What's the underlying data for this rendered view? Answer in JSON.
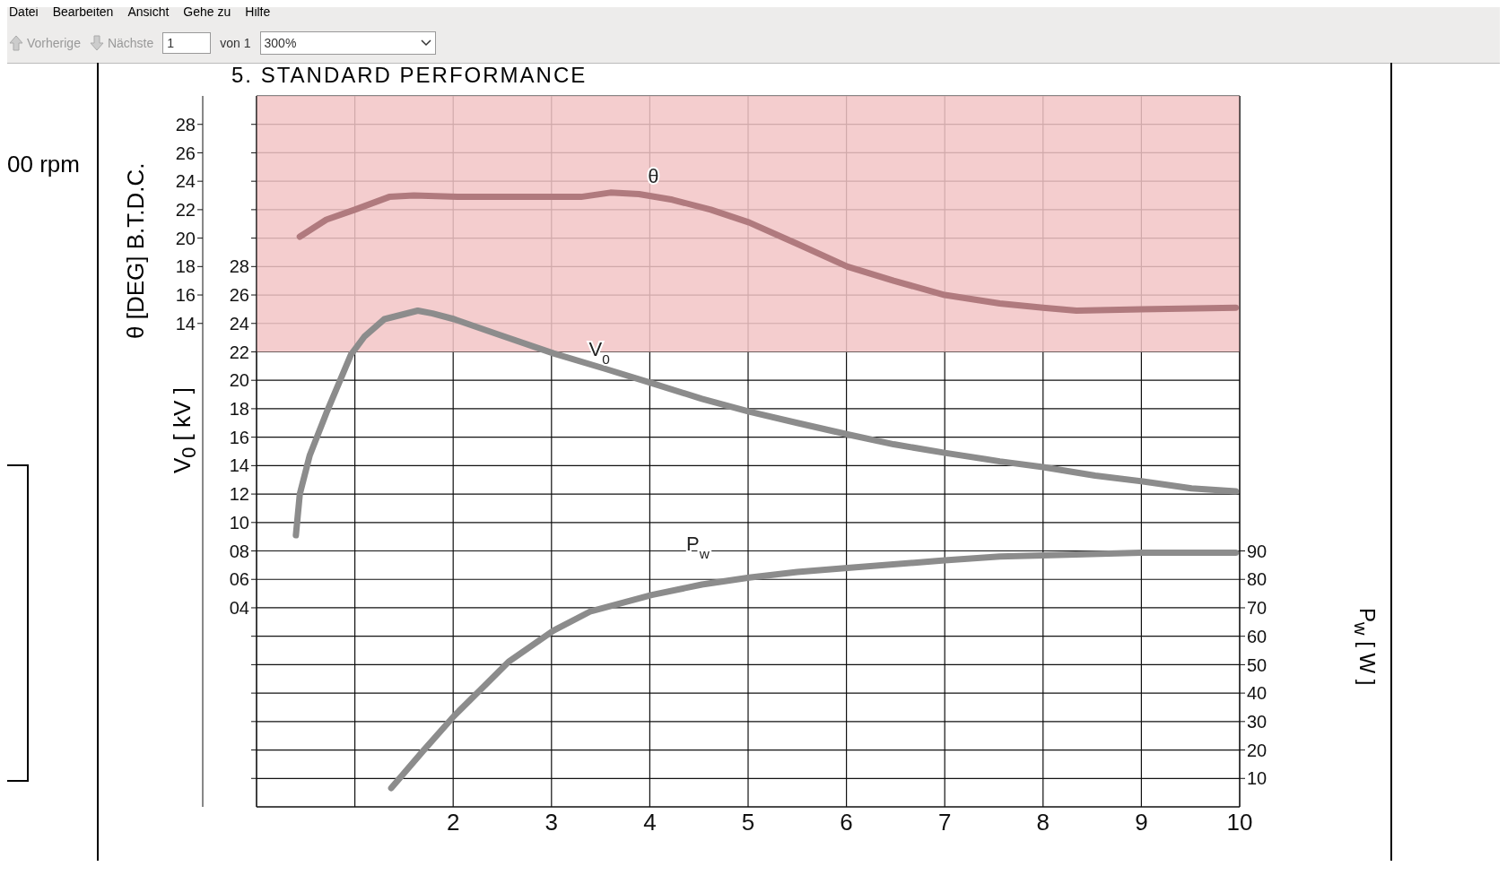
{
  "chart_data": {
    "type": "line",
    "title": "5. STANDARD PERFORMANCE",
    "ylabel": "V$_{0}$ [ kV ]",
    "y2label": "P$_{w}$ [ W ]",
    "y3label": "θ [DEG] B.T.D.C.",
    "xlim": [
      0,
      10
    ],
    "xticks": [
      {
        "value": 0,
        "label": null
      },
      {
        "value": 1,
        "label": null
      },
      2,
      3,
      4,
      5,
      6,
      7,
      8,
      9,
      10
    ],
    "ylim": [
      -10,
      40
    ],
    "yticks": [
      {
        "value": -8,
        "label": null
      },
      {
        "value": -6,
        "label": null
      },
      {
        "value": -4,
        "label": null
      },
      {
        "value": -2,
        "label": null
      },
      {
        "value": 0,
        "label": null
      },
      {
        "value": 2,
        "label": null
      },
      {
        "value": 4,
        "label": "04"
      },
      {
        "value": 6,
        "label": "06"
      },
      {
        "value": 8,
        "label": "08"
      },
      10,
      12,
      14,
      16,
      18,
      20,
      22,
      24,
      26,
      28,
      {
        "value": 30,
        "label": null
      },
      {
        "value": 32,
        "label": null
      },
      {
        "value": 34,
        "label": null
      },
      {
        "value": 36,
        "label": null
      },
      {
        "value": 38,
        "label": null
      }
    ],
    "y2lim": [
      0,
      250
    ],
    "y2ticks": [
      10,
      20,
      30,
      40,
      50,
      60,
      70,
      80,
      90
    ],
    "y3lim": [
      -20,
      30
    ],
    "y3ticks": [
      14,
      16,
      18,
      20,
      22,
      24,
      26,
      28
    ],
    "grid": true,
    "legend": false,
    "marker": "none",
    "line_style": "solid",
    "bands": [
      {
        "axis": "y",
        "from": 22,
        "to": 40,
        "color": "#f2c4c6"
      }
    ],
    "annotations": [
      "Datei",
      "Bearbeiten",
      "Ansicht",
      "Gehe zu",
      "Hilfe",
      "Vorherige",
      "Nächste",
      "1",
      "von 1",
      "300%",
      "00 rpm"
    ],
    "series": [
      {
        "name": "θ",
        "color": "#b07a7e",
        "axis": "y3",
        "x": [
          0.44,
          0.71,
          1.0,
          1.35,
          1.6,
          2.08,
          2.86,
          3.3,
          3.6,
          3.89,
          4.23,
          4.62,
          5.01,
          5.5,
          6.01,
          6.48,
          7.0,
          7.56,
          8.0,
          8.34,
          9.0,
          9.96
        ],
        "values": [
          20.1,
          21.3,
          22.0,
          22.9,
          23.0,
          22.9,
          22.9,
          22.9,
          23.2,
          23.1,
          22.7,
          22.0,
          21.1,
          19.6,
          18.0,
          17.0,
          16.0,
          15.4,
          15.1,
          14.9,
          15.0,
          15.1
        ]
      },
      {
        "name": "V$_{0}$",
        "color": "#8c8c8c",
        "axis": "y",
        "x": [
          0.4,
          0.44,
          0.54,
          0.71,
          0.96,
          1.1,
          1.3,
          1.64,
          1.79,
          2.01,
          2.47,
          3.02,
          3.55,
          4.02,
          4.53,
          5.01,
          5.5,
          6.01,
          6.48,
          7.0,
          7.56,
          8.0,
          8.53,
          9.0,
          9.51,
          9.96
        ],
        "values": [
          9.1,
          12.0,
          14.7,
          17.7,
          21.8,
          23.1,
          24.3,
          24.9,
          24.7,
          24.3,
          23.2,
          21.9,
          20.8,
          19.8,
          18.7,
          17.8,
          17.0,
          16.2,
          15.5,
          14.9,
          14.3,
          13.9,
          13.3,
          12.9,
          12.4,
          12.2
        ]
      },
      {
        "name": "P$_{w}$",
        "color": "#8c8c8c",
        "axis": "y2",
        "x": [
          1.37,
          1.69,
          2.01,
          2.57,
          3.02,
          3.4,
          4.02,
          4.53,
          5.01,
          5.5,
          6.01,
          7.0,
          7.56,
          8.0,
          9.0,
          9.96
        ],
        "values": [
          6.6,
          19.5,
          32.0,
          51.2,
          62.0,
          68.8,
          74.5,
          78.2,
          80.6,
          82.6,
          84.0,
          86.7,
          88.0,
          88.4,
          89.4,
          89.4
        ]
      }
    ]
  }
}
